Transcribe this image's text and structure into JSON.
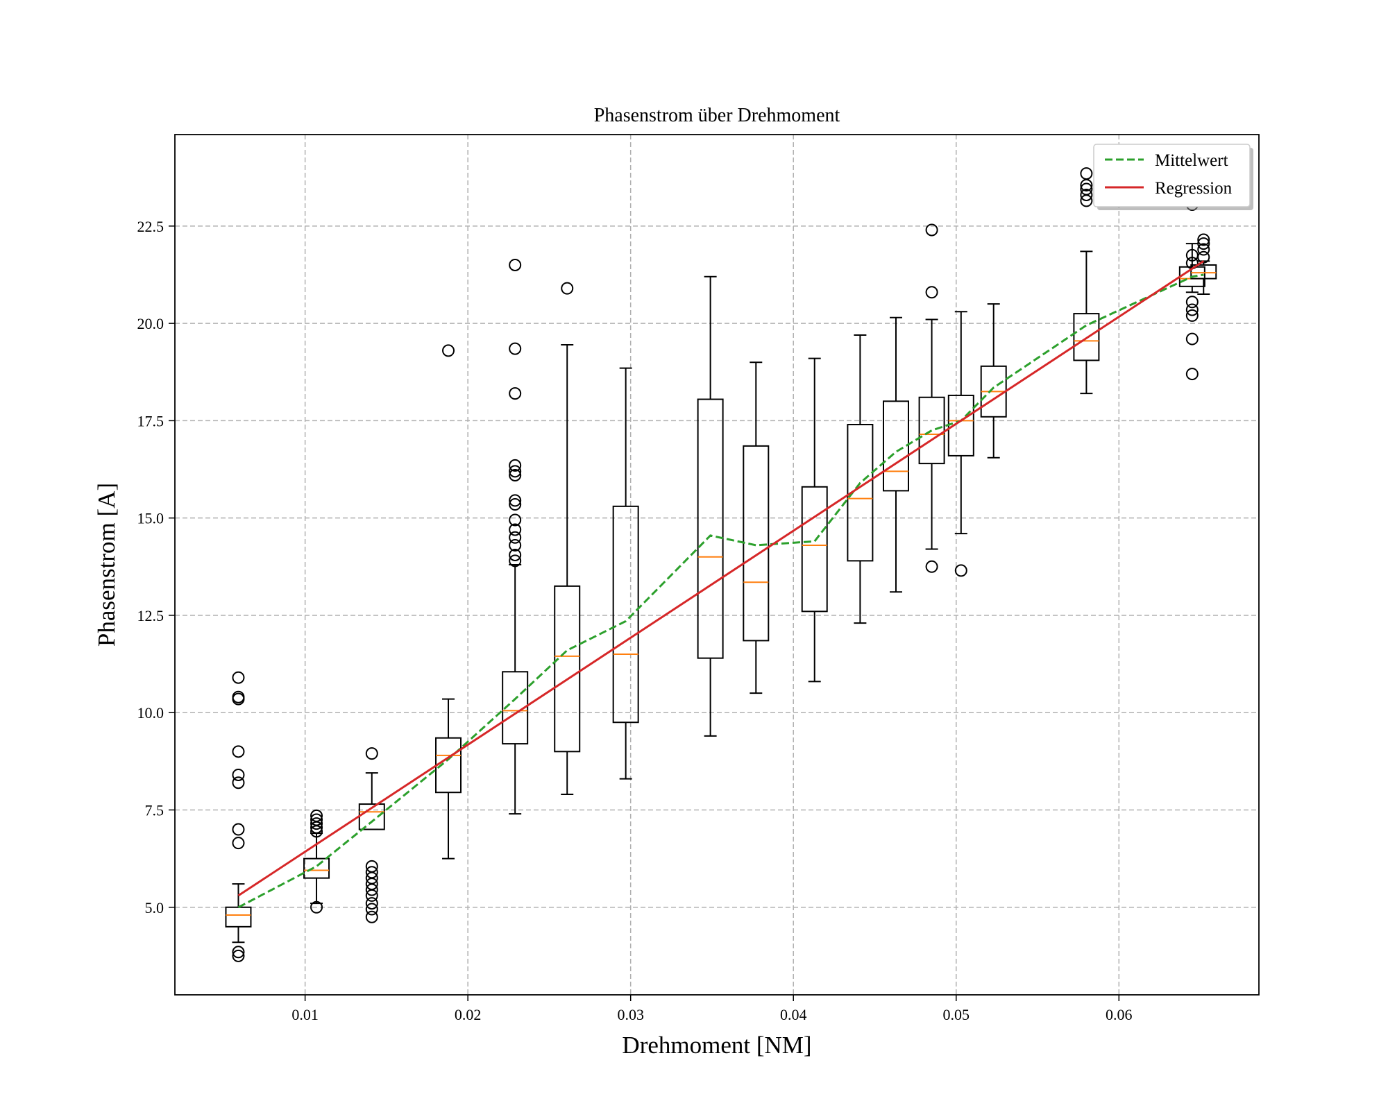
{
  "chart_data": {
    "type": "box",
    "title": "Phasenstrom über Drehmoment",
    "xlabel": "Drehmoment [NM]",
    "ylabel": "Phasenstrom [A]",
    "xlim": [
      0.002,
      0.0686
    ],
    "ylim": [
      2.75,
      24.85
    ],
    "x_ticks": [
      "0.01",
      "0.02",
      "0.03",
      "0.04",
      "0.05",
      "0.06"
    ],
    "y_ticks": [
      "5.0",
      "7.5",
      "10.0",
      "12.5",
      "15.0",
      "17.5",
      "20.0",
      "22.5"
    ],
    "grid": true,
    "legend_position": "top-right",
    "legend": [
      {
        "label": "Mittelwert",
        "style": "dashed",
        "color": "#2ca02c"
      },
      {
        "label": "Regression",
        "style": "solid",
        "color": "#d62728"
      }
    ],
    "colors": {
      "box": "#000000",
      "median": "#ff7f0e",
      "mean": "#2ca02c",
      "regression": "#d62728",
      "grid": "#b0b0b0"
    },
    "boxes": [
      {
        "x": 0.0059,
        "whislo": 4.1,
        "q1": 4.5,
        "med": 4.8,
        "q3": 5.0,
        "whishi": 5.6,
        "fliers": [
          3.75,
          3.85,
          6.65,
          7.0,
          8.2,
          8.4,
          9.0,
          10.35,
          10.4,
          10.9
        ]
      },
      {
        "x": 0.0107,
        "whislo": 5.1,
        "q1": 5.75,
        "med": 5.95,
        "q3": 6.25,
        "whishi": 6.9,
        "fliers": [
          5.0,
          6.95,
          7.05,
          7.15,
          7.25,
          7.35
        ]
      },
      {
        "x": 0.0141,
        "whislo": 7.0,
        "q1": 7.0,
        "med": 7.45,
        "q3": 7.65,
        "whishi": 8.45,
        "fliers": [
          4.75,
          4.95,
          5.1,
          5.3,
          5.45,
          5.6,
          5.75,
          5.9,
          6.05,
          8.95
        ]
      },
      {
        "x": 0.0188,
        "whislo": 6.25,
        "q1": 7.95,
        "med": 8.9,
        "q3": 9.35,
        "whishi": 10.35,
        "fliers": [
          19.3
        ]
      },
      {
        "x": 0.0229,
        "whislo": 7.4,
        "q1": 9.2,
        "med": 10.05,
        "q3": 11.05,
        "whishi": 13.8,
        "fliers": [
          13.9,
          14.05,
          14.3,
          14.5,
          14.7,
          14.95,
          15.35,
          15.45,
          16.1,
          16.2,
          16.35,
          18.2,
          19.35,
          21.5
        ]
      },
      {
        "x": 0.0261,
        "whislo": 7.9,
        "q1": 9.0,
        "med": 11.45,
        "q3": 13.25,
        "whishi": 19.45,
        "fliers": [
          20.9
        ]
      },
      {
        "x": 0.0297,
        "whislo": 8.3,
        "q1": 9.75,
        "med": 11.5,
        "q3": 15.3,
        "whishi": 18.85,
        "fliers": []
      },
      {
        "x": 0.0349,
        "whislo": 9.4,
        "q1": 11.4,
        "med": 14.0,
        "q3": 18.05,
        "whishi": 21.2,
        "fliers": []
      },
      {
        "x": 0.0377,
        "whislo": 10.5,
        "q1": 11.85,
        "med": 13.35,
        "q3": 16.85,
        "whishi": 19.0,
        "fliers": []
      },
      {
        "x": 0.0413,
        "whislo": 10.8,
        "q1": 12.6,
        "med": 14.3,
        "q3": 15.8,
        "whishi": 19.1,
        "fliers": []
      },
      {
        "x": 0.0441,
        "whislo": 12.3,
        "q1": 13.9,
        "med": 15.5,
        "q3": 17.4,
        "whishi": 19.7,
        "fliers": []
      },
      {
        "x": 0.0463,
        "whislo": 13.1,
        "q1": 15.7,
        "med": 16.2,
        "q3": 18.0,
        "whishi": 20.15,
        "fliers": []
      },
      {
        "x": 0.0485,
        "whislo": 14.2,
        "q1": 16.4,
        "med": 17.15,
        "q3": 18.1,
        "whishi": 20.1,
        "fliers": [
          13.75,
          20.8,
          22.4
        ]
      },
      {
        "x": 0.0503,
        "whislo": 14.6,
        "q1": 16.6,
        "med": 17.5,
        "q3": 18.15,
        "whishi": 20.3,
        "fliers": [
          13.65
        ]
      },
      {
        "x": 0.0523,
        "whislo": 16.55,
        "q1": 17.6,
        "med": 18.25,
        "q3": 18.9,
        "whishi": 20.5,
        "fliers": []
      },
      {
        "x": 0.058,
        "whislo": 18.2,
        "q1": 19.05,
        "med": 19.55,
        "q3": 20.25,
        "whishi": 21.85,
        "fliers": [
          23.15,
          23.3,
          23.45,
          23.55,
          23.85
        ]
      },
      {
        "x": 0.0645,
        "whislo": 20.8,
        "q1": 20.95,
        "med": 21.15,
        "q3": 21.45,
        "whishi": 22.05,
        "fliers": [
          18.7,
          19.6,
          20.2,
          20.35,
          20.55,
          21.55,
          21.75,
          23.05
        ]
      },
      {
        "x": 0.0652,
        "whislo": 20.75,
        "q1": 21.15,
        "med": 21.3,
        "q3": 21.5,
        "whishi": 21.6,
        "fliers": [
          21.7,
          21.9,
          22.05,
          22.15
        ]
      }
    ],
    "series": [
      {
        "name": "Mittelwert",
        "x": [
          0.0059,
          0.0107,
          0.0141,
          0.0188,
          0.0229,
          0.0261,
          0.0297,
          0.0349,
          0.0377,
          0.0413,
          0.0441,
          0.0463,
          0.0485,
          0.0503,
          0.0523,
          0.058,
          0.0645,
          0.0652
        ],
        "y": [
          5.0,
          6.05,
          7.2,
          8.8,
          10.35,
          11.6,
          12.35,
          14.55,
          14.3,
          14.4,
          15.9,
          16.7,
          17.25,
          17.5,
          18.35,
          19.95,
          21.2,
          21.25
        ]
      },
      {
        "name": "Regression",
        "x": [
          0.0059,
          0.0652
        ],
        "y": [
          5.3,
          21.6
        ]
      }
    ]
  }
}
